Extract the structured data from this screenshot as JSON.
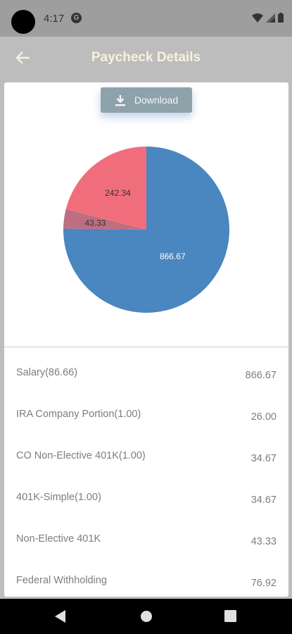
{
  "status_bar": {
    "time": "4:17",
    "g_icon": "G"
  },
  "app_bar": {
    "title": "Paycheck Details",
    "back_icon": "arrow-left-icon"
  },
  "download": {
    "label": "Download",
    "icon": "download-icon"
  },
  "chart_data": {
    "type": "pie",
    "slices": [
      {
        "label": "866.67",
        "value": 866.67,
        "color": "#4a86bf"
      },
      {
        "label": "43.33",
        "value": 43.33,
        "color": "#bf6e82"
      },
      {
        "label": "242.34",
        "value": 242.34,
        "color": "#f06e7c"
      }
    ]
  },
  "rows": [
    {
      "label": "Salary(86.66)",
      "value": "866.67"
    },
    {
      "label": "IRA Company Portion(1.00)",
      "value": "26.00"
    },
    {
      "label": "CO Non-Elective 401K(1.00)",
      "value": "34.67"
    },
    {
      "label": "401K-Simple(1.00)",
      "value": "34.67"
    },
    {
      "label": "Non-Elective 401K",
      "value": "43.33"
    },
    {
      "label": "Federal Withholding",
      "value": "76.92"
    }
  ],
  "colors": {
    "app_bar": "#bdbdbd",
    "title": "#f6f2de",
    "button": "#8ea2ac"
  }
}
